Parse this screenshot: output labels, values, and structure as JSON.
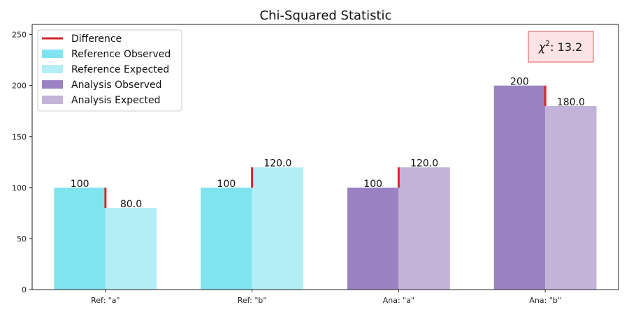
{
  "chart_data": {
    "type": "bar",
    "title": "Chi-Squared Statistic",
    "xlabel": "",
    "ylabel": "",
    "ylim": [
      0,
      260
    ],
    "yticks": [
      0,
      50,
      100,
      150,
      200,
      250
    ],
    "categories": [
      "Ref: \"a\"",
      "Ref: \"b\"",
      "Ana: \"a\"",
      "Ana: \"b\""
    ],
    "observed": [
      100,
      100,
      100,
      200
    ],
    "expected": [
      80.0,
      120.0,
      120.0,
      180.0
    ],
    "observed_labels": [
      "100",
      "100",
      "100",
      "200"
    ],
    "expected_labels": [
      "80.0",
      "120.0",
      "120.0",
      "180.0"
    ],
    "groups": [
      "reference",
      "reference",
      "analysis",
      "analysis"
    ],
    "legend": {
      "placement": "top-left",
      "entries": [
        {
          "label": "Difference",
          "kind": "line",
          "color": "#d62728"
        },
        {
          "label": "Reference Observed",
          "kind": "patch",
          "color": "#7fe4f0"
        },
        {
          "label": "Reference Expected",
          "kind": "patch",
          "color": "#b3eef6"
        },
        {
          "label": "Analysis Observed",
          "kind": "patch",
          "color": "#9b82c2"
        },
        {
          "label": "Analysis Expected",
          "kind": "patch",
          "color": "#c3b3d9"
        }
      ]
    },
    "colors": {
      "reference_observed": "#7fe4f0",
      "reference_expected": "#b3eef6",
      "analysis_observed": "#9b82c2",
      "analysis_expected": "#c3b3d9",
      "difference": "#d62728"
    },
    "statistic": {
      "symbol": "χ",
      "exponent": "2",
      "text": ": 13.2",
      "box_fill": "#fde3e3",
      "box_stroke": "#e05a5a"
    }
  }
}
